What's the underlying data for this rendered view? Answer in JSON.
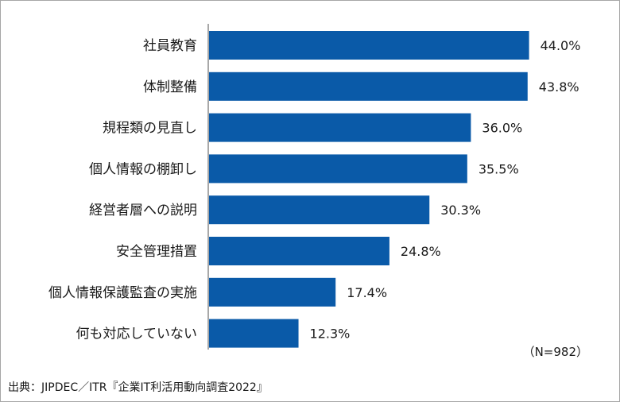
{
  "chart_data": {
    "type": "bar",
    "orientation": "horizontal",
    "categories": [
      "社員教育",
      "体制整備",
      "規程類の見直し",
      "個人情報の棚卸し",
      "経営者層への説明",
      "安全管理措置",
      "個人情報保護監査の実施",
      "何も対応していない"
    ],
    "values": [
      44.0,
      43.8,
      36.0,
      35.5,
      30.3,
      24.8,
      17.4,
      12.3
    ],
    "value_labels": [
      "44.0%",
      "43.8%",
      "36.0%",
      "35.5%",
      "30.3%",
      "24.8%",
      "17.4%",
      "12.3%"
    ],
    "xlim": [
      0,
      50
    ],
    "unit": "%",
    "bar_color": "#0A5AA8",
    "grid": false,
    "legend": "none"
  },
  "sample_note": "（N=982）",
  "source": "出典：JIPDEC／ITR『企業IT利活用動向調査2022』"
}
